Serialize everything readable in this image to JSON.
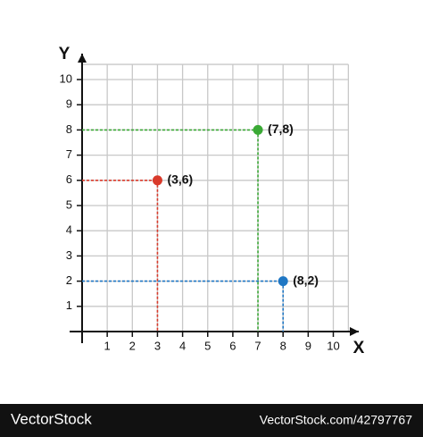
{
  "chart_data": {
    "type": "scatter",
    "x_label": "X",
    "y_label": "Y",
    "x": [
      3,
      7,
      8
    ],
    "values": [
      6,
      8,
      2
    ],
    "value_labels": [
      "(3,6)",
      "(7,8)",
      "(8,2)"
    ],
    "colors": [
      "#d93a2b",
      "#3aa935",
      "#1f77c4"
    ],
    "xlim": [
      0,
      10.6
    ],
    "ylim": [
      0,
      10.6
    ],
    "xticks": [
      1,
      2,
      3,
      4,
      5,
      6,
      7,
      8,
      9,
      10
    ],
    "yticks": [
      1,
      2,
      3,
      4,
      5,
      6,
      7,
      8,
      9,
      10
    ],
    "grid": true
  },
  "watermark": {
    "brand": "VectorStock",
    "url": "VectorStock.com/42797767"
  }
}
